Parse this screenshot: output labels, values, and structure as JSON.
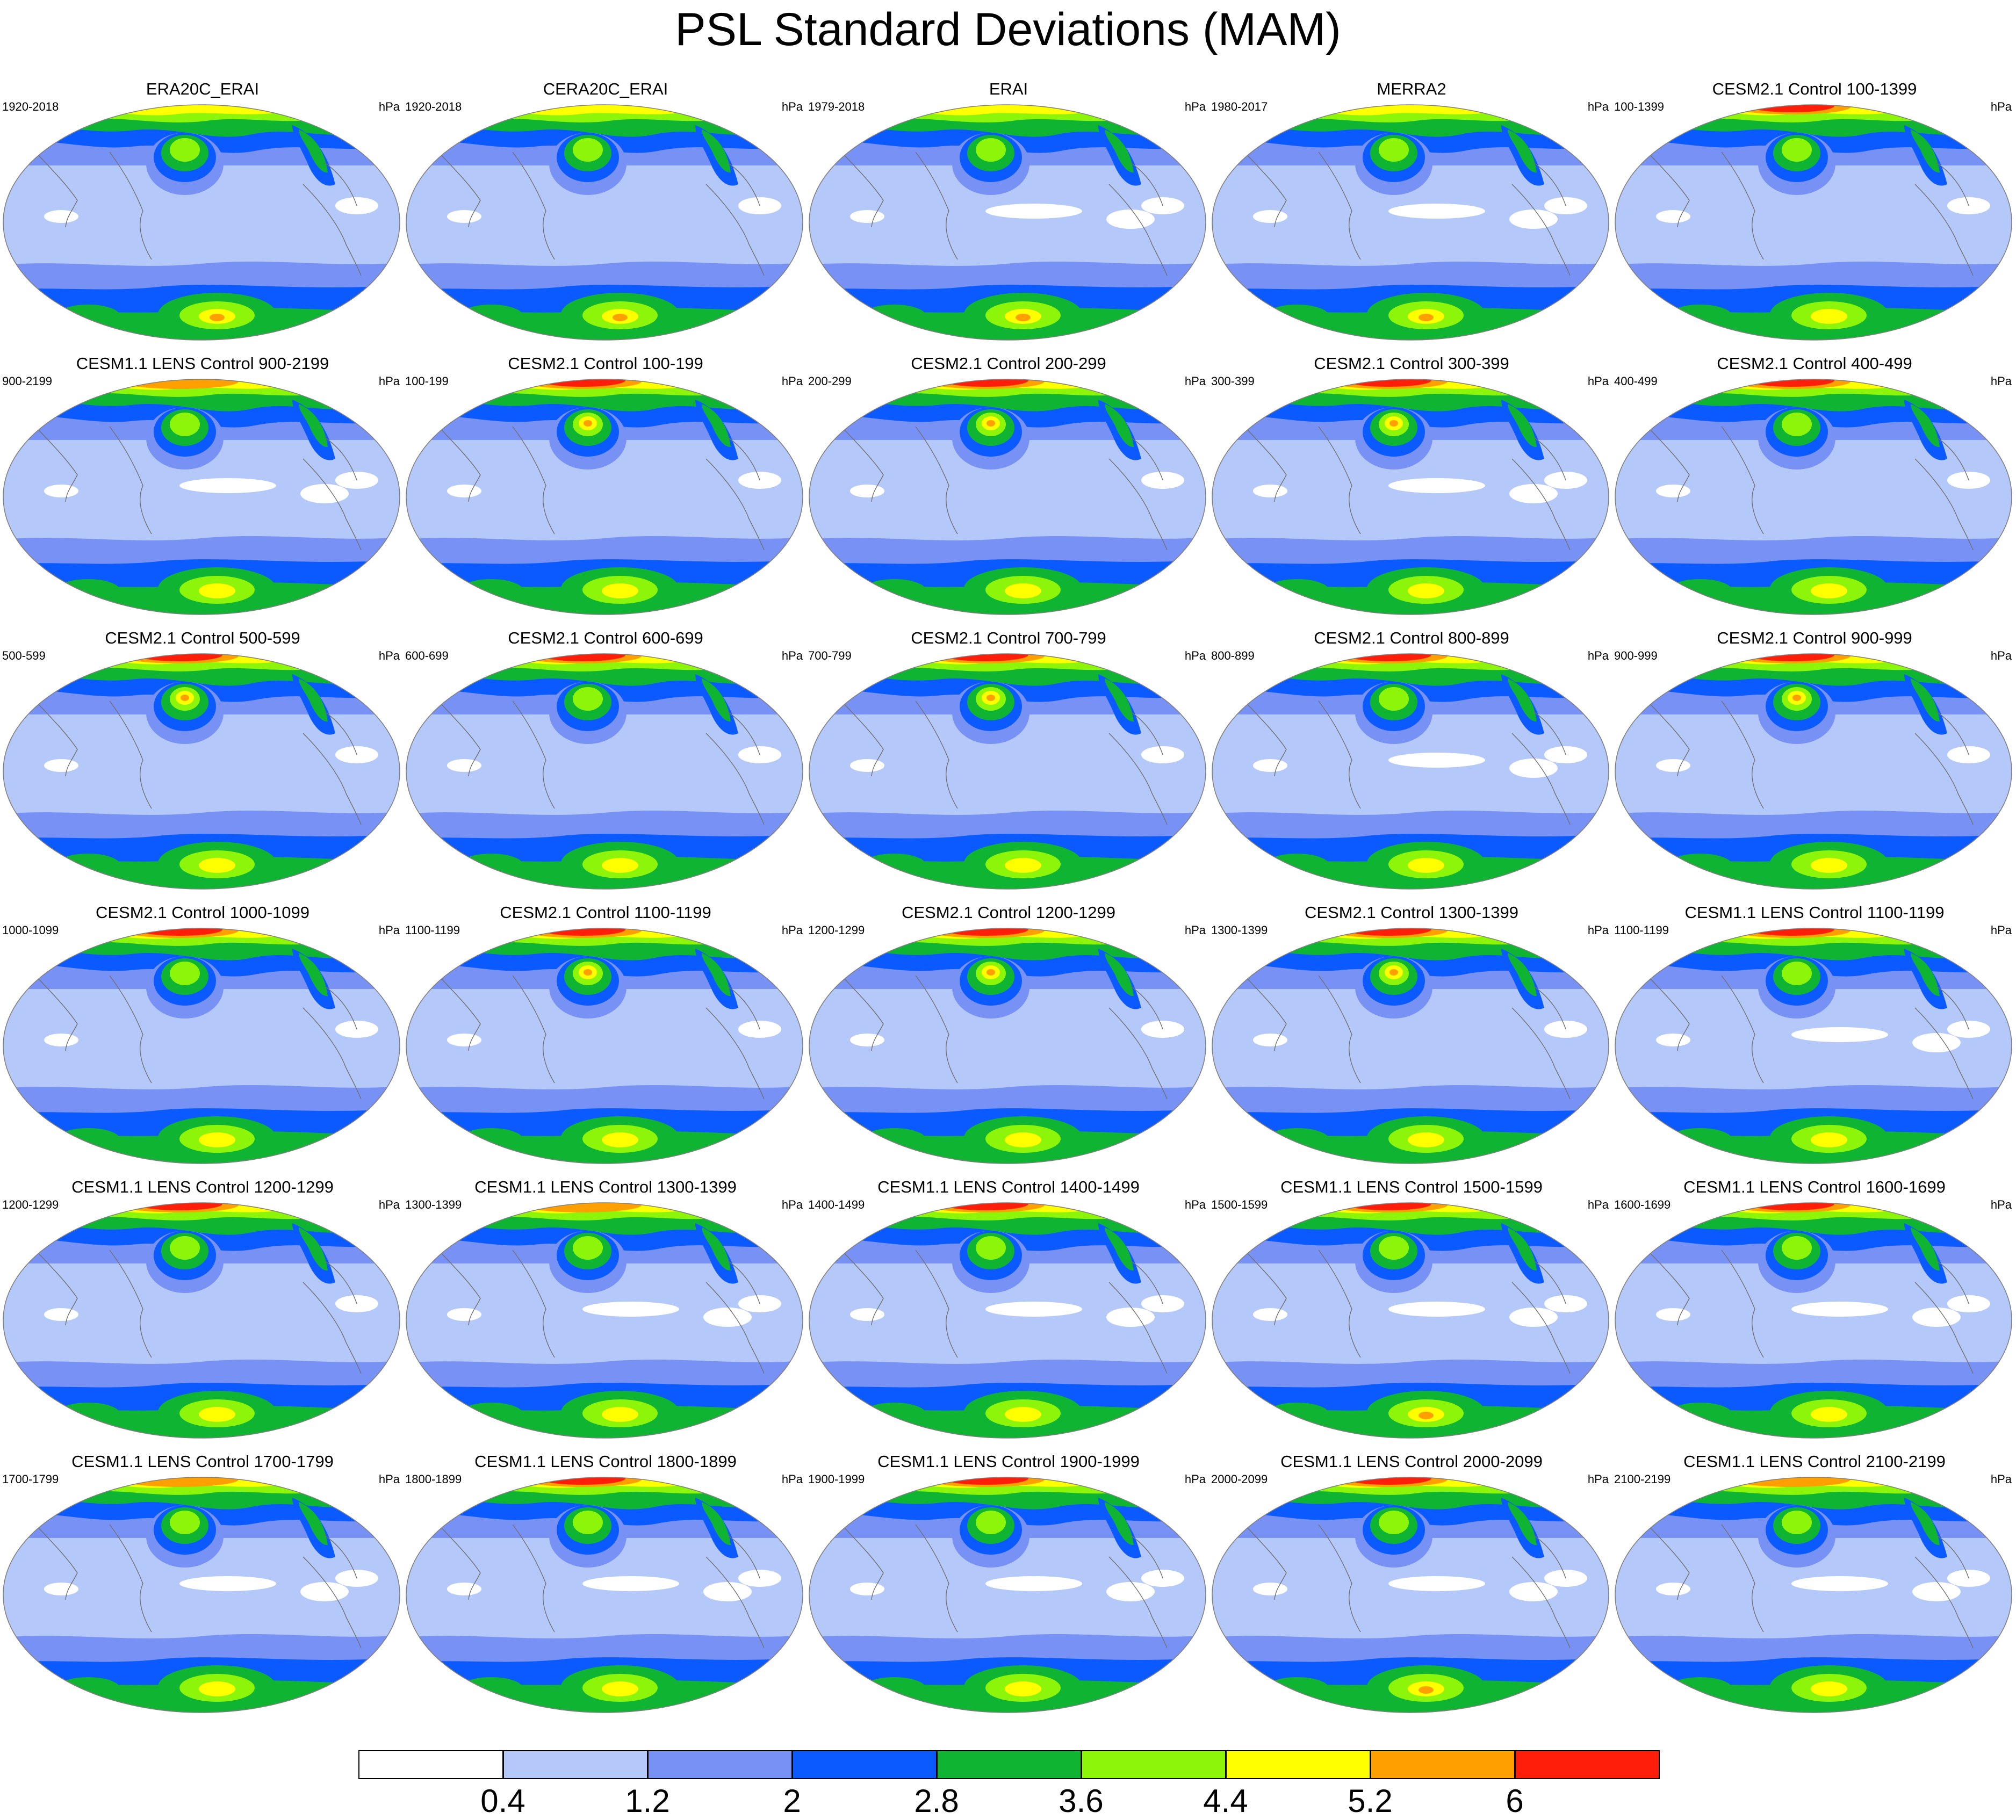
{
  "title": "PSL Standard Deviations (MAM)",
  "units": "hPa",
  "legend": {
    "colors": [
      "#ffffff",
      "#b4c8fa",
      "#7891f5",
      "#0a5aff",
      "#0fb432",
      "#8cf50a",
      "#ffff00",
      "#ffa000",
      "#ff1e0a"
    ],
    "labels": [
      "0.4",
      "1.2",
      "2",
      "2.8",
      "3.6",
      "4.4",
      "5.2",
      "6"
    ]
  },
  "panels": [
    {
      "title": "ERA20C_ERAI",
      "years": "1920-2018",
      "arctic": 0,
      "pac": 3,
      "ant": 3,
      "wh": 1
    },
    {
      "title": "CERA20C_ERAI",
      "years": "1920-2018",
      "arctic": 0,
      "pac": 3,
      "ant": 3,
      "wh": 1
    },
    {
      "title": "ERAI",
      "years": "1979-2018",
      "arctic": 0,
      "pac": 3,
      "ant": 3,
      "wh": 2
    },
    {
      "title": "MERRA2",
      "years": "1980-2017",
      "arctic": 0,
      "pac": 3,
      "ant": 3,
      "wh": 2
    },
    {
      "title": "CESM2.1 Control 100-1399",
      "years": "100-1399",
      "arctic": 2,
      "pac": 3,
      "ant": 2,
      "wh": 1
    },
    {
      "title": "CESM1.1 LENS Control 900-2199",
      "years": "900-2199",
      "arctic": 1,
      "pac": 3,
      "ant": 2,
      "wh": 2
    },
    {
      "title": "CESM2.1 Control 100-199",
      "years": "100-199",
      "arctic": 2,
      "pac": 4,
      "ant": 2,
      "wh": 1
    },
    {
      "title": "CESM2.1 Control 200-299",
      "years": "200-299",
      "arctic": 2,
      "pac": 4,
      "ant": 2,
      "wh": 1
    },
    {
      "title": "CESM2.1 Control 300-399",
      "years": "300-399",
      "arctic": 2,
      "pac": 4,
      "ant": 2,
      "wh": 2
    },
    {
      "title": "CESM2.1 Control 400-499",
      "years": "400-499",
      "arctic": 2,
      "pac": 3,
      "ant": 2,
      "wh": 1
    },
    {
      "title": "CESM2.1 Control 500-599",
      "years": "500-599",
      "arctic": 2,
      "pac": 4,
      "ant": 2,
      "wh": 1
    },
    {
      "title": "CESM2.1 Control 600-699",
      "years": "600-699",
      "arctic": 2,
      "pac": 3,
      "ant": 2,
      "wh": 1
    },
    {
      "title": "CESM2.1 Control 700-799",
      "years": "700-799",
      "arctic": 2,
      "pac": 4,
      "ant": 2,
      "wh": 1
    },
    {
      "title": "CESM2.1 Control 800-899",
      "years": "800-899",
      "arctic": 2,
      "pac": 3,
      "ant": 2,
      "wh": 2
    },
    {
      "title": "CESM2.1 Control 900-999",
      "years": "900-999",
      "arctic": 2,
      "pac": 4,
      "ant": 2,
      "wh": 1
    },
    {
      "title": "CESM2.1 Control 1000-1099",
      "years": "1000-1099",
      "arctic": 2,
      "pac": 3,
      "ant": 2,
      "wh": 1
    },
    {
      "title": "CESM2.1 Control 1100-1199",
      "years": "1100-1199",
      "arctic": 2,
      "pac": 4,
      "ant": 2,
      "wh": 1
    },
    {
      "title": "CESM2.1 Control 1200-1299",
      "years": "1200-1299",
      "arctic": 2,
      "pac": 4,
      "ant": 2,
      "wh": 1
    },
    {
      "title": "CESM2.1 Control 1300-1399",
      "years": "1300-1399",
      "arctic": 2,
      "pac": 4,
      "ant": 2,
      "wh": 1
    },
    {
      "title": "CESM1.1 LENS Control 1100-1199",
      "years": "1100-1199",
      "arctic": 2,
      "pac": 3,
      "ant": 2,
      "wh": 2
    },
    {
      "title": "CESM1.1 LENS Control 1200-1299",
      "years": "1200-1299",
      "arctic": 2,
      "pac": 3,
      "ant": 2,
      "wh": 1
    },
    {
      "title": "CESM1.1 LENS Control 1300-1399",
      "years": "1300-1399",
      "arctic": 1,
      "pac": 3,
      "ant": 2,
      "wh": 2
    },
    {
      "title": "CESM1.1 LENS Control 1400-1499",
      "years": "1400-1499",
      "arctic": 2,
      "pac": 3,
      "ant": 2,
      "wh": 2
    },
    {
      "title": "CESM1.1 LENS Control 1500-1599",
      "years": "1500-1599",
      "arctic": 2,
      "pac": 3,
      "ant": 3,
      "wh": 2
    },
    {
      "title": "CESM1.1 LENS Control 1600-1699",
      "years": "1600-1699",
      "arctic": 2,
      "pac": 3,
      "ant": 2,
      "wh": 2
    },
    {
      "title": "CESM1.1 LENS Control 1700-1799",
      "years": "1700-1799",
      "arctic": 1,
      "pac": 3,
      "ant": 2,
      "wh": 2
    },
    {
      "title": "CESM1.1 LENS Control 1800-1899",
      "years": "1800-1899",
      "arctic": 2,
      "pac": 3,
      "ant": 2,
      "wh": 2
    },
    {
      "title": "CESM1.1 LENS Control 1900-1999",
      "years": "1900-1999",
      "arctic": 2,
      "pac": 3,
      "ant": 2,
      "wh": 2
    },
    {
      "title": "CESM1.1 LENS Control 2000-2099",
      "years": "2000-2099",
      "arctic": 2,
      "pac": 3,
      "ant": 3,
      "wh": 2
    },
    {
      "title": "CESM1.1 LENS Control 2100-2199",
      "years": "2100-2199",
      "arctic": 1,
      "pac": 3,
      "ant": 2,
      "wh": 2
    }
  ]
}
